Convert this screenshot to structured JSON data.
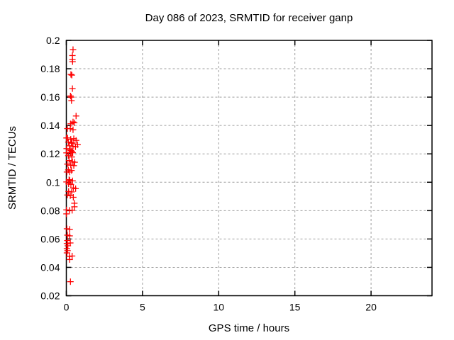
{
  "chart_data": {
    "type": "scatter",
    "title": "Day 086 of 2023, SRMTID for receiver ganp",
    "xlabel": "GPS time / hours",
    "ylabel": "SRMTID / TECUs",
    "xlim": [
      0,
      24
    ],
    "ylim": [
      0.02,
      0.2
    ],
    "x_ticks": [
      0,
      5,
      10,
      15,
      20
    ],
    "x_tick_labels": [
      "0",
      "5",
      "10",
      "15",
      "20"
    ],
    "y_ticks": [
      0.02,
      0.04,
      0.06,
      0.08,
      0.1,
      0.12,
      0.14,
      0.16,
      0.18,
      0.2
    ],
    "y_tick_labels": [
      "0.02",
      "0.04",
      "0.06",
      "0.08",
      "0.1",
      "0.12",
      "0.14",
      "0.16",
      "0.18",
      "0.2"
    ],
    "grid": true,
    "legend": "none",
    "marker": "plus",
    "marker_color": "#ff0000",
    "grid_color": "#9e9e9e",
    "border_color": "#000000",
    "series": [
      {
        "name": "SRMTID",
        "points": [
          [
            0.44,
            0.1935
          ],
          [
            0.4,
            0.1893
          ],
          [
            0.4,
            0.1865
          ],
          [
            0.41,
            0.185
          ],
          [
            0.3,
            0.176
          ],
          [
            0.36,
            0.1755
          ],
          [
            0.4,
            0.166
          ],
          [
            0.27,
            0.1608
          ],
          [
            0.32,
            0.16
          ],
          [
            0.34,
            0.1575
          ],
          [
            0.64,
            0.1467
          ],
          [
            0.44,
            0.1425
          ],
          [
            0.52,
            0.1419
          ],
          [
            0.29,
            0.1412
          ],
          [
            0.07,
            0.1378
          ],
          [
            0.26,
            0.1378
          ],
          [
            0.44,
            0.137
          ],
          [
            0.01,
            0.1312
          ],
          [
            0.08,
            0.1312
          ],
          [
            0.29,
            0.1303
          ],
          [
            0.49,
            0.1307
          ],
          [
            0.64,
            0.1295
          ],
          [
            0.13,
            0.1283
          ],
          [
            0.34,
            0.128
          ],
          [
            0.37,
            0.1275
          ],
          [
            0.21,
            0.1257
          ],
          [
            0.44,
            0.1253
          ],
          [
            0.6,
            0.125
          ],
          [
            0.74,
            0.1265
          ],
          [
            0.02,
            0.1237
          ],
          [
            0.23,
            0.1228
          ],
          [
            0.3,
            0.1223
          ],
          [
            0.37,
            0.1218
          ],
          [
            0.28,
            0.121
          ],
          [
            0.01,
            0.1207
          ],
          [
            0.42,
            0.1208
          ],
          [
            0.13,
            0.1187
          ],
          [
            0.36,
            0.1178
          ],
          [
            0.18,
            0.1153
          ],
          [
            0.4,
            0.1145
          ],
          [
            0.55,
            0.1141
          ],
          [
            0.06,
            0.1128
          ],
          [
            0.29,
            0.112
          ],
          [
            0.49,
            0.1117
          ],
          [
            0.13,
            0.1087
          ],
          [
            0.34,
            0.1083
          ],
          [
            0.04,
            0.1072
          ],
          [
            0.22,
            0.1072
          ],
          [
            0.18,
            0.1018
          ],
          [
            0.22,
            0.1013
          ],
          [
            0.41,
            0.101
          ],
          [
            0.01,
            0.1002
          ],
          [
            0.15,
            0.0989
          ],
          [
            0.3,
            0.0985
          ],
          [
            0.46,
            0.096
          ],
          [
            0.61,
            0.0955
          ],
          [
            0.15,
            0.0935
          ],
          [
            0.35,
            0.0932
          ],
          [
            0.07,
            0.091
          ],
          [
            0.26,
            0.0905
          ],
          [
            0.46,
            0.0894
          ],
          [
            0.53,
            0.0852
          ],
          [
            0.53,
            0.0827
          ],
          [
            0.01,
            0.0805
          ],
          [
            0.2,
            0.0802
          ],
          [
            0.38,
            0.0802
          ],
          [
            0.01,
            0.0777
          ],
          [
            0.04,
            0.0672
          ],
          [
            0.22,
            0.0668
          ],
          [
            0.07,
            0.0627
          ],
          [
            0.22,
            0.0622
          ],
          [
            0.07,
            0.0589
          ],
          [
            0.26,
            0.0572
          ],
          [
            0.04,
            0.0568
          ],
          [
            0.1,
            0.0552
          ],
          [
            0.04,
            0.0532
          ],
          [
            0.08,
            0.0518
          ],
          [
            0.04,
            0.0502
          ],
          [
            0.2,
            0.0477
          ],
          [
            0.38,
            0.048
          ],
          [
            0.22,
            0.0455
          ],
          [
            0.27,
            0.0299
          ]
        ]
      }
    ]
  }
}
